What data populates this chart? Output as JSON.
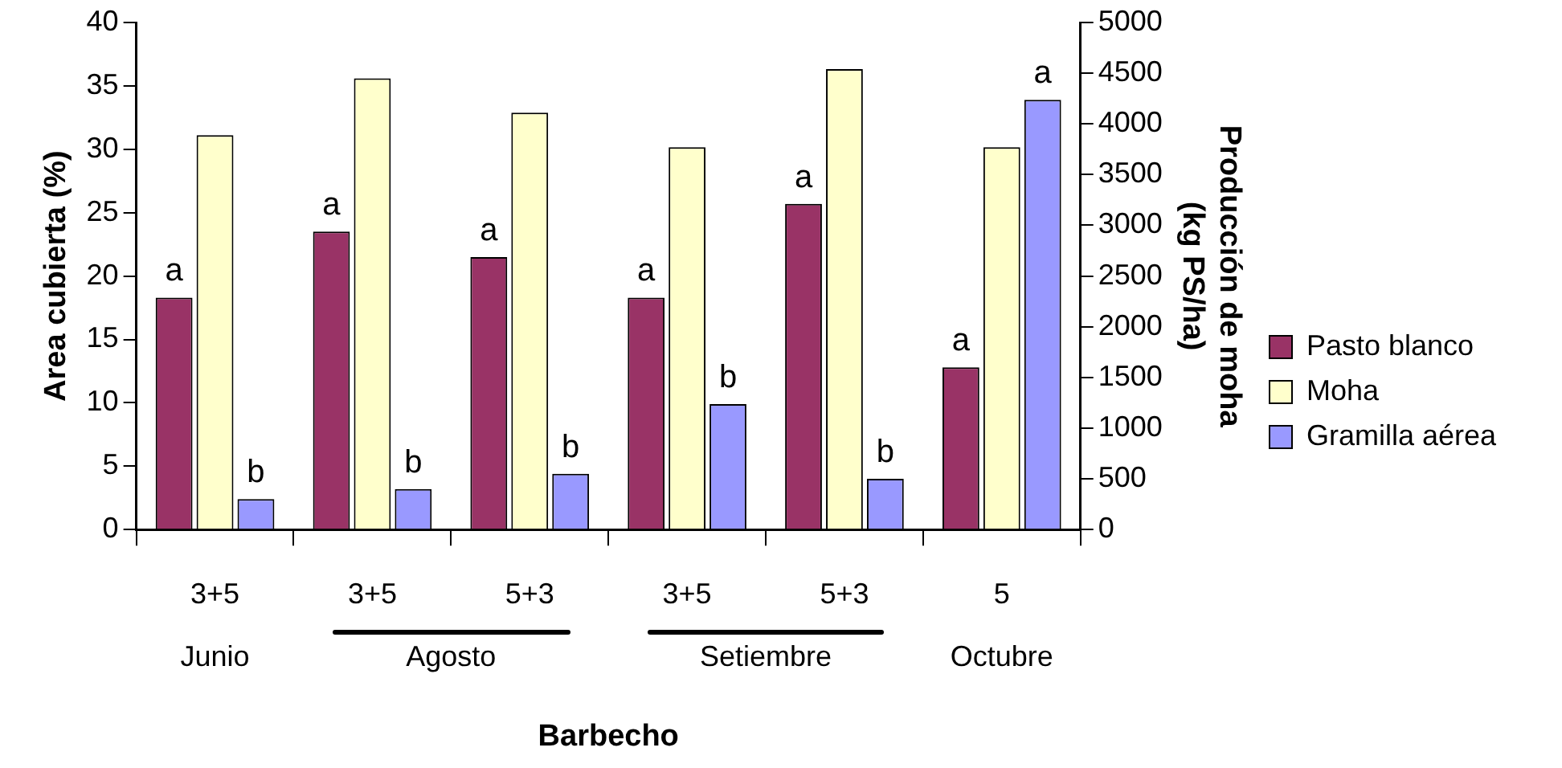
{
  "chart_data": {
    "type": "bar",
    "xlabel": "Barbecho",
    "ylabel": "Area cubierta (%)",
    "y2label": "Producción de moha (kg PS/ha)",
    "categories": [
      "3+5",
      "3+5",
      "5+3",
      "3+5",
      "5+3",
      "5"
    ],
    "annotations": [
      "Junio",
      "Agosto",
      "Setiembre",
      "Octubre"
    ],
    "series": [
      {
        "name": "Pasto blanco",
        "color": "#993366",
        "values": [
          18.3,
          23.5,
          21.5,
          18.3,
          25.7,
          12.8
        ],
        "value_labels": [
          "a",
          "a",
          "a",
          "a",
          "a",
          "a"
        ]
      },
      {
        "name": "Moha",
        "color": "#ffffcc",
        "axis": "y2",
        "values": [
          3890,
          4450,
          4110,
          3770,
          4540,
          3770
        ]
      },
      {
        "name": "Gramilla aérea",
        "color": "#9999ff",
        "values": [
          2.4,
          3.2,
          4.4,
          9.9,
          4.0,
          33.9
        ],
        "value_labels": [
          "b",
          "b",
          "b",
          "b",
          "b",
          "a"
        ]
      }
    ],
    "ylim": [
      0,
      40
    ],
    "yticks": [
      0,
      5,
      10,
      15,
      20,
      25,
      30,
      35,
      40
    ],
    "y2lim": [
      0,
      5000
    ],
    "y2ticks": [
      0,
      500,
      1000,
      1500,
      2000,
      2500,
      3000,
      3500,
      4000,
      4500,
      5000
    ],
    "grid": false,
    "legend": "right"
  }
}
